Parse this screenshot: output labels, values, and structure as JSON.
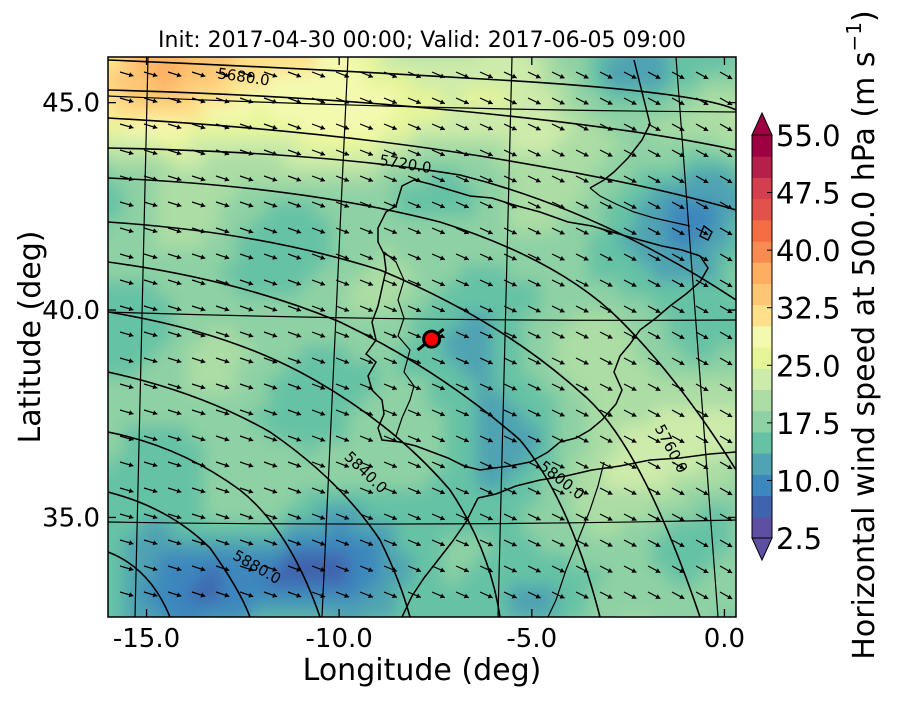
{
  "chart_data": {
    "type": "heatmap",
    "title": "Init: 2017-04-30 00:00; Valid: 2017-06-05 09:00",
    "xlabel": "Longitude (deg)",
    "ylabel": "Latitude (deg)",
    "xlim": [
      -16.0,
      0.3
    ],
    "ylim": [
      32.6,
      46.1
    ],
    "x_ticks": [
      -15.0,
      -10.0,
      -5.0,
      0.0
    ],
    "x_tick_labels": [
      "-15.0",
      "-10.0",
      "-5.0",
      "0.0"
    ],
    "y_ticks": [
      35.0,
      40.0,
      45.0
    ],
    "y_tick_labels": [
      "35.0",
      "40.0",
      "45.0"
    ],
    "colorbar": {
      "label": "Horizontal wind speed at 500.0 hPa (m s",
      "label_unit_superscript": "−1",
      "label_close": ")",
      "ticks": [
        2.5,
        10.0,
        17.5,
        25.0,
        32.5,
        40.0,
        47.5,
        55.0
      ],
      "tick_labels": [
        "2.5",
        "10.0",
        "17.5",
        "25.0",
        "32.5",
        "40.0",
        "47.5",
        "55.0"
      ],
      "range": [
        2.5,
        55.0
      ],
      "extend": "both",
      "colors": [
        "#5e4fa2",
        "#3f64ad",
        "#3c87bd",
        "#4fa3b2",
        "#66c2a5",
        "#8ed1a4",
        "#abdda4",
        "#cdebaa",
        "#e6f598",
        "#f4f9b0",
        "#fee08b",
        "#fdc675",
        "#fdae61",
        "#f88b51",
        "#f46d43",
        "#e3524a",
        "#d53e4f",
        "#b51f4a",
        "#9e0142"
      ]
    },
    "contour_labels": [
      {
        "text": "5680.0",
        "lon": -12.5,
        "lat": 45.5,
        "angle": 8
      },
      {
        "text": "5720.0",
        "lon": -8.3,
        "lat": 43.4,
        "angle": 9
      },
      {
        "text": "5760.0",
        "lon": -1.5,
        "lat": 36.6,
        "angle": 62
      },
      {
        "text": "5800.0",
        "lon": -4.3,
        "lat": 35.8,
        "angle": 38
      },
      {
        "text": "5840.0",
        "lon": -9.4,
        "lat": 36.0,
        "angle": 44
      },
      {
        "text": "5880.0",
        "lon": -12.2,
        "lat": 33.7,
        "angle": 30
      }
    ],
    "wind_field": {
      "speed_min": 6,
      "speed_max": 34,
      "direction": "northwesterly"
    },
    "marker": {
      "lon": -7.6,
      "lat": 39.3,
      "color": "#ff0000"
    }
  }
}
